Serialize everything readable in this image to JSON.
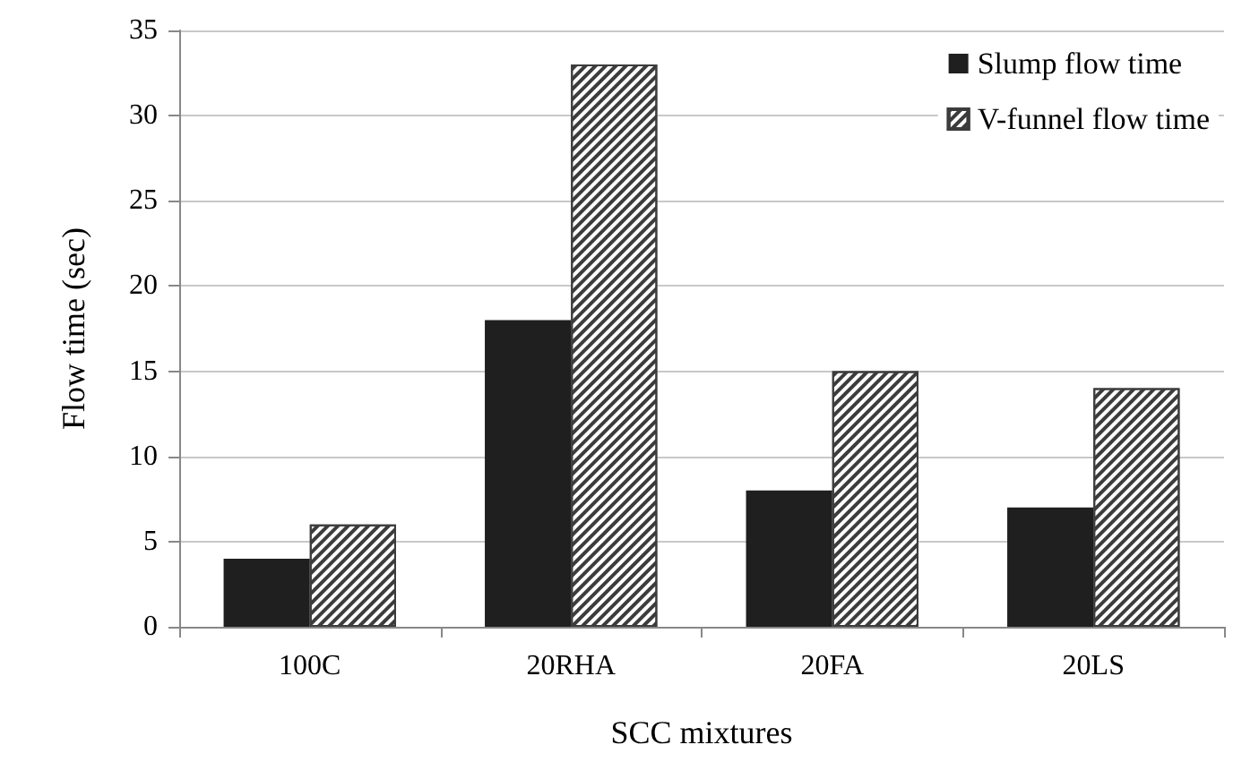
{
  "chart_data": {
    "type": "bar",
    "xlabel": "SCC mixtures",
    "ylabel": "Flow time (sec)",
    "categories": [
      "100C",
      "20RHA",
      "20FA",
      "20LS"
    ],
    "series": [
      {
        "name": "Slump flow time",
        "color": "#1f1f1f",
        "values": [
          4,
          18,
          8,
          7
        ]
      },
      {
        "name": "V-funnel flow time",
        "color": "#3c3c3c",
        "values": [
          6,
          33,
          15,
          14
        ]
      }
    ],
    "ylim": [
      0,
      35
    ],
    "yticks": [
      0,
      5,
      10,
      15,
      20,
      25,
      30,
      35
    ],
    "grid": "y",
    "legend": "top right"
  }
}
